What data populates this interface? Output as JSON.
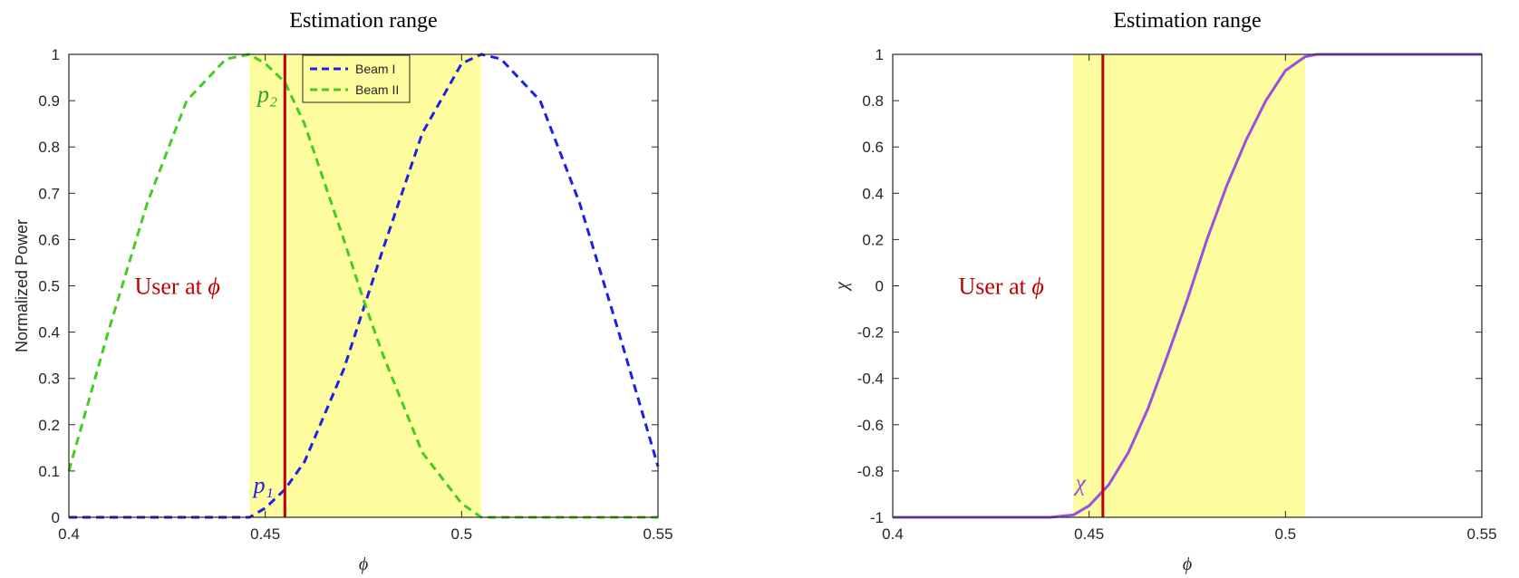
{
  "chart_data": [
    {
      "type": "line",
      "title": "Estimation range",
      "xlabel": "ϕ",
      "ylabel": "Normalized Power",
      "xlim": [
        0.4,
        0.55
      ],
      "ylim": [
        0,
        1
      ],
      "x_ticks": [
        0.4,
        0.45,
        0.5,
        0.55
      ],
      "x_tick_labels": [
        "0.4",
        "0.45",
        "0.5",
        "0.55"
      ],
      "y_ticks": [
        0,
        0.1,
        0.2,
        0.3,
        0.4,
        0.5,
        0.6,
        0.7,
        0.8,
        0.9,
        1
      ],
      "y_tick_labels": [
        "0",
        "0.1",
        "0.2",
        "0.3",
        "0.4",
        "0.5",
        "0.6",
        "0.7",
        "0.8",
        "0.9",
        "1"
      ],
      "shaded_region": {
        "x": [
          0.446,
          0.505
        ],
        "color": "#fdfc9e"
      },
      "vline": {
        "x": 0.455,
        "color": "#c00000"
      },
      "legend": {
        "position": "top",
        "entries": [
          "Beam I",
          "Beam II"
        ]
      },
      "series": [
        {
          "name": "Beam I",
          "color": "#1f1fe8",
          "style": "dashed",
          "x": [
            0.4,
            0.41,
            0.42,
            0.43,
            0.44,
            0.446,
            0.45,
            0.455,
            0.46,
            0.47,
            0.475,
            0.48,
            0.49,
            0.5,
            0.505,
            0.51,
            0.52,
            0.53,
            0.54,
            0.55
          ],
          "y": [
            0,
            0,
            0,
            0,
            0,
            0,
            0.02,
            0.06,
            0.12,
            0.32,
            0.45,
            0.58,
            0.83,
            0.98,
            1,
            0.99,
            0.9,
            0.68,
            0.4,
            0.11
          ]
        },
        {
          "name": "Beam II",
          "color": "#44cc22",
          "style": "dashed",
          "x": [
            0.4,
            0.41,
            0.42,
            0.43,
            0.44,
            0.446,
            0.45,
            0.455,
            0.46,
            0.47,
            0.475,
            0.48,
            0.49,
            0.5,
            0.505,
            0.51,
            0.52,
            0.53,
            0.54,
            0.55
          ],
          "y": [
            0.1,
            0.4,
            0.68,
            0.9,
            0.99,
            1,
            0.98,
            0.94,
            0.85,
            0.6,
            0.47,
            0.35,
            0.14,
            0.03,
            0,
            0,
            0,
            0,
            0,
            0
          ]
        }
      ],
      "annotations": [
        {
          "text": "User at ",
          "math": "ϕ",
          "color": "#c00000",
          "x": 0.4385,
          "y": 0.5
        },
        {
          "text": "",
          "math": "p₂",
          "color": "#2aa52a",
          "x": 0.448,
          "y": 0.915
        },
        {
          "text": "",
          "math": "p₁",
          "color": "#1f1fe8",
          "x": 0.447,
          "y": 0.07
        }
      ]
    },
    {
      "type": "line",
      "title": "Estimation range",
      "xlabel": "ϕ",
      "ylabel": "χ",
      "xlim": [
        0.4,
        0.55
      ],
      "ylim": [
        -1,
        1
      ],
      "x_ticks": [
        0.4,
        0.45,
        0.5,
        0.55
      ],
      "x_tick_labels": [
        "0.4",
        "0.45",
        "0.5",
        "0.55"
      ],
      "y_ticks": [
        -1,
        -0.8,
        -0.6,
        -0.4,
        -0.2,
        0,
        0.2,
        0.4,
        0.6,
        0.8,
        1
      ],
      "y_tick_labels": [
        "-1",
        "-0.8",
        "-0.6",
        "-0.4",
        "-0.2",
        "0",
        "0.2",
        "0.4",
        "0.6",
        "0.8",
        "1"
      ],
      "shaded_region": {
        "x": [
          0.446,
          0.505
        ],
        "color": "#fdfc9e"
      },
      "vline": {
        "x": 0.4535,
        "color": "#c00000"
      },
      "series": [
        {
          "name": "",
          "color": "#9b4fe0",
          "style": "solid",
          "x": [
            0.4,
            0.41,
            0.42,
            0.43,
            0.44,
            0.446,
            0.45,
            0.455,
            0.46,
            0.465,
            0.47,
            0.475,
            0.48,
            0.485,
            0.49,
            0.495,
            0.5,
            0.505,
            0.508,
            0.51,
            0.52,
            0.53,
            0.54,
            0.55
          ],
          "y": [
            -1,
            -1,
            -1,
            -1,
            -1,
            -0.99,
            -0.95,
            -0.86,
            -0.72,
            -0.53,
            -0.3,
            -0.06,
            0.2,
            0.43,
            0.63,
            0.8,
            0.93,
            0.99,
            1,
            1,
            1,
            1,
            1,
            1
          ]
        }
      ],
      "annotations": [
        {
          "text": "User at ",
          "math": "ϕ",
          "color": "#c00000",
          "x": 0.4385,
          "y": 0
        },
        {
          "text": "",
          "math": "χ",
          "color": "#9b4fe0",
          "x": 0.4465,
          "y": -0.85
        }
      ]
    }
  ]
}
